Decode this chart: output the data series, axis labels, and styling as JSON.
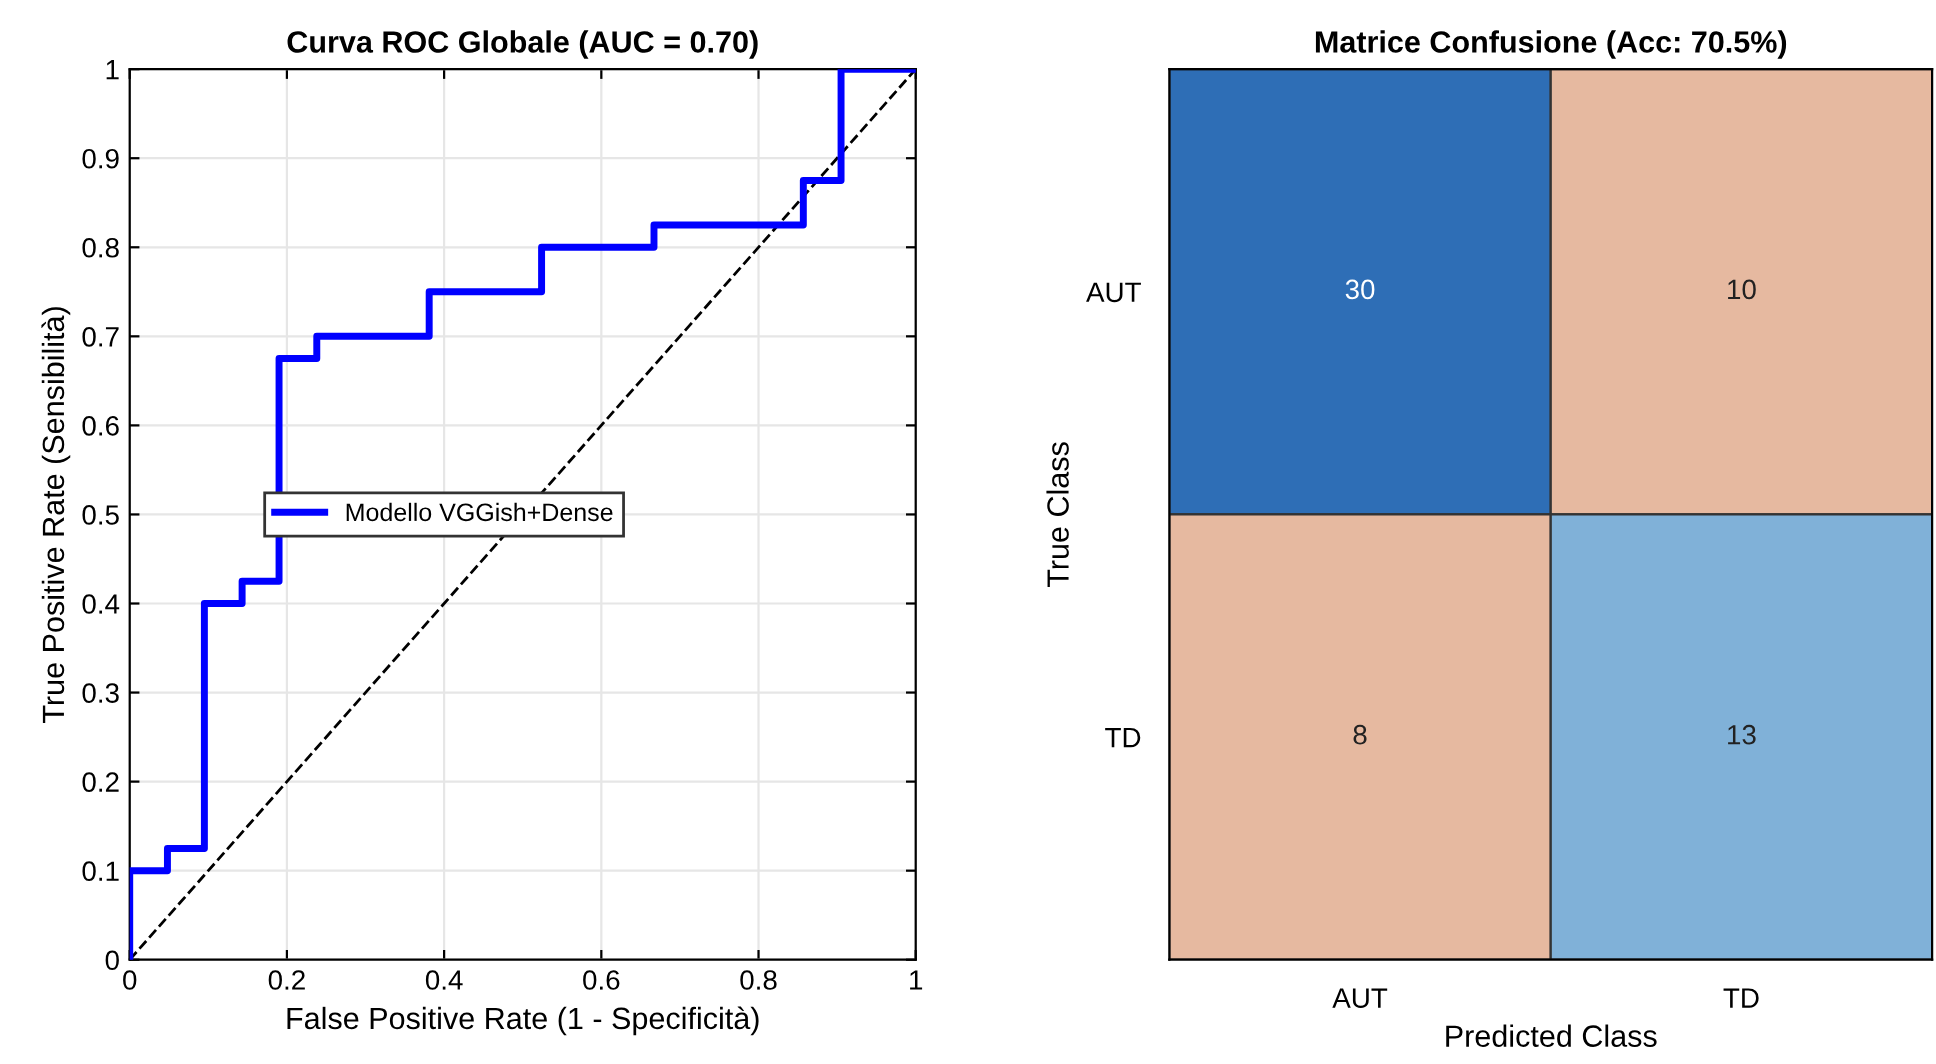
{
  "chart_data": [
    {
      "type": "line",
      "title": "Curva ROC Globale (AUC = 0.70)",
      "xlabel": "False Positive Rate (1 - Specificità)",
      "ylabel": "True Positive Rate (Sensibilità)",
      "series": [
        {
          "name": "Modello VGGish+Dense",
          "color": "#0000ff",
          "line_style": "solid",
          "x": [
            0,
            0,
            0.048,
            0.048,
            0.095,
            0.095,
            0.143,
            0.143,
            0.19,
            0.19,
            0.238,
            0.238,
            0.381,
            0.381,
            0.524,
            0.524,
            0.667,
            0.667,
            0.857,
            0.857,
            0.905,
            0.905,
            1
          ],
          "values": [
            0,
            0.1,
            0.1,
            0.125,
            0.125,
            0.4,
            0.4,
            0.425,
            0.425,
            0.675,
            0.675,
            0.7,
            0.7,
            0.75,
            0.75,
            0.8,
            0.8,
            0.825,
            0.825,
            0.875,
            0.875,
            1,
            1
          ]
        },
        {
          "color": "#000000",
          "line_style": "dashed",
          "x": [
            0,
            1
          ],
          "values": [
            0,
            1
          ]
        }
      ],
      "xlim": [
        0,
        1
      ],
      "ylim": [
        0,
        1
      ],
      "xticks": [
        0,
        0.2,
        0.4,
        0.6,
        0.8,
        1
      ],
      "yticks": [
        0,
        0.1,
        0.2,
        0.3,
        0.4,
        0.5,
        0.6,
        0.7,
        0.8,
        0.9,
        1
      ],
      "grid": true,
      "legend": "center"
    },
    {
      "type": "heatmap",
      "title": "Matrice Confusione (Acc: 70.5%)",
      "xlabel": "Predicted Class",
      "ylabel": "True Class",
      "categories": [
        "AUT",
        "TD"
      ],
      "y_categories": [
        "AUT",
        "TD"
      ],
      "cells": [
        [
          30,
          10
        ],
        [
          8,
          13
        ]
      ],
      "colors": [
        [
          "#2e6eb6",
          "#e6b9a0"
        ],
        [
          "#e6b9a0",
          "#80b1d8"
        ]
      ],
      "data_labels": true
    }
  ]
}
